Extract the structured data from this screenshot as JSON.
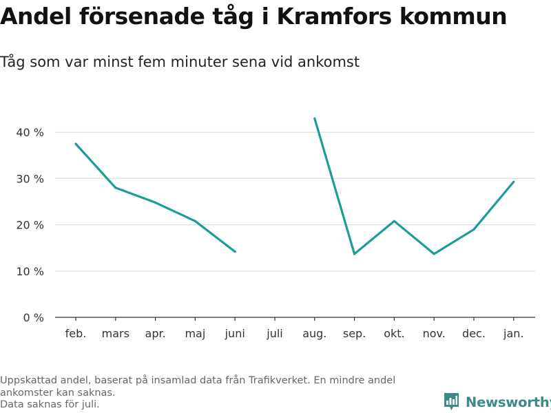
{
  "header": {
    "title": "Andel försenade tåg i Kramfors kommun",
    "subtitle": "Tåg som var minst fem minuter sena vid ankomst"
  },
  "footer": {
    "note_line1": "Uppskattad andel, baserat på insamlad data från Trafikverket. En mindre andel ankomster kan saknas.",
    "note_line2": "Data saknas för juli.",
    "brand": "Newsworthy"
  },
  "colors": {
    "line": "#1a9e94",
    "grid": "#dddddd",
    "axis": "#333333",
    "brand": "#3a8a85"
  },
  "chart_data": {
    "type": "line",
    "categories": [
      "feb.",
      "mars",
      "apr.",
      "maj",
      "juni",
      "juli",
      "aug.",
      "sep.",
      "okt.",
      "nov.",
      "dec.",
      "jan."
    ],
    "series": [
      {
        "values": [
          37.5,
          28,
          24.8,
          20.8,
          14.2,
          null,
          43,
          13.7,
          20.8,
          13.7,
          19,
          29.3
        ]
      }
    ],
    "y_ticks": [
      {
        "value": 0,
        "label": "0 %"
      },
      {
        "value": 10,
        "label": "10 %"
      },
      {
        "value": 20,
        "label": "20 %"
      },
      {
        "value": 30,
        "label": "30 %"
      },
      {
        "value": 40,
        "label": "40 %"
      }
    ],
    "ylim": [
      0,
      43
    ],
    "grid": true,
    "title": "Andel försenade tåg i Kramfors kommun",
    "subtitle": "Tåg som var minst fem minuter sena vid ankomst",
    "xlabel": "",
    "ylabel": ""
  }
}
